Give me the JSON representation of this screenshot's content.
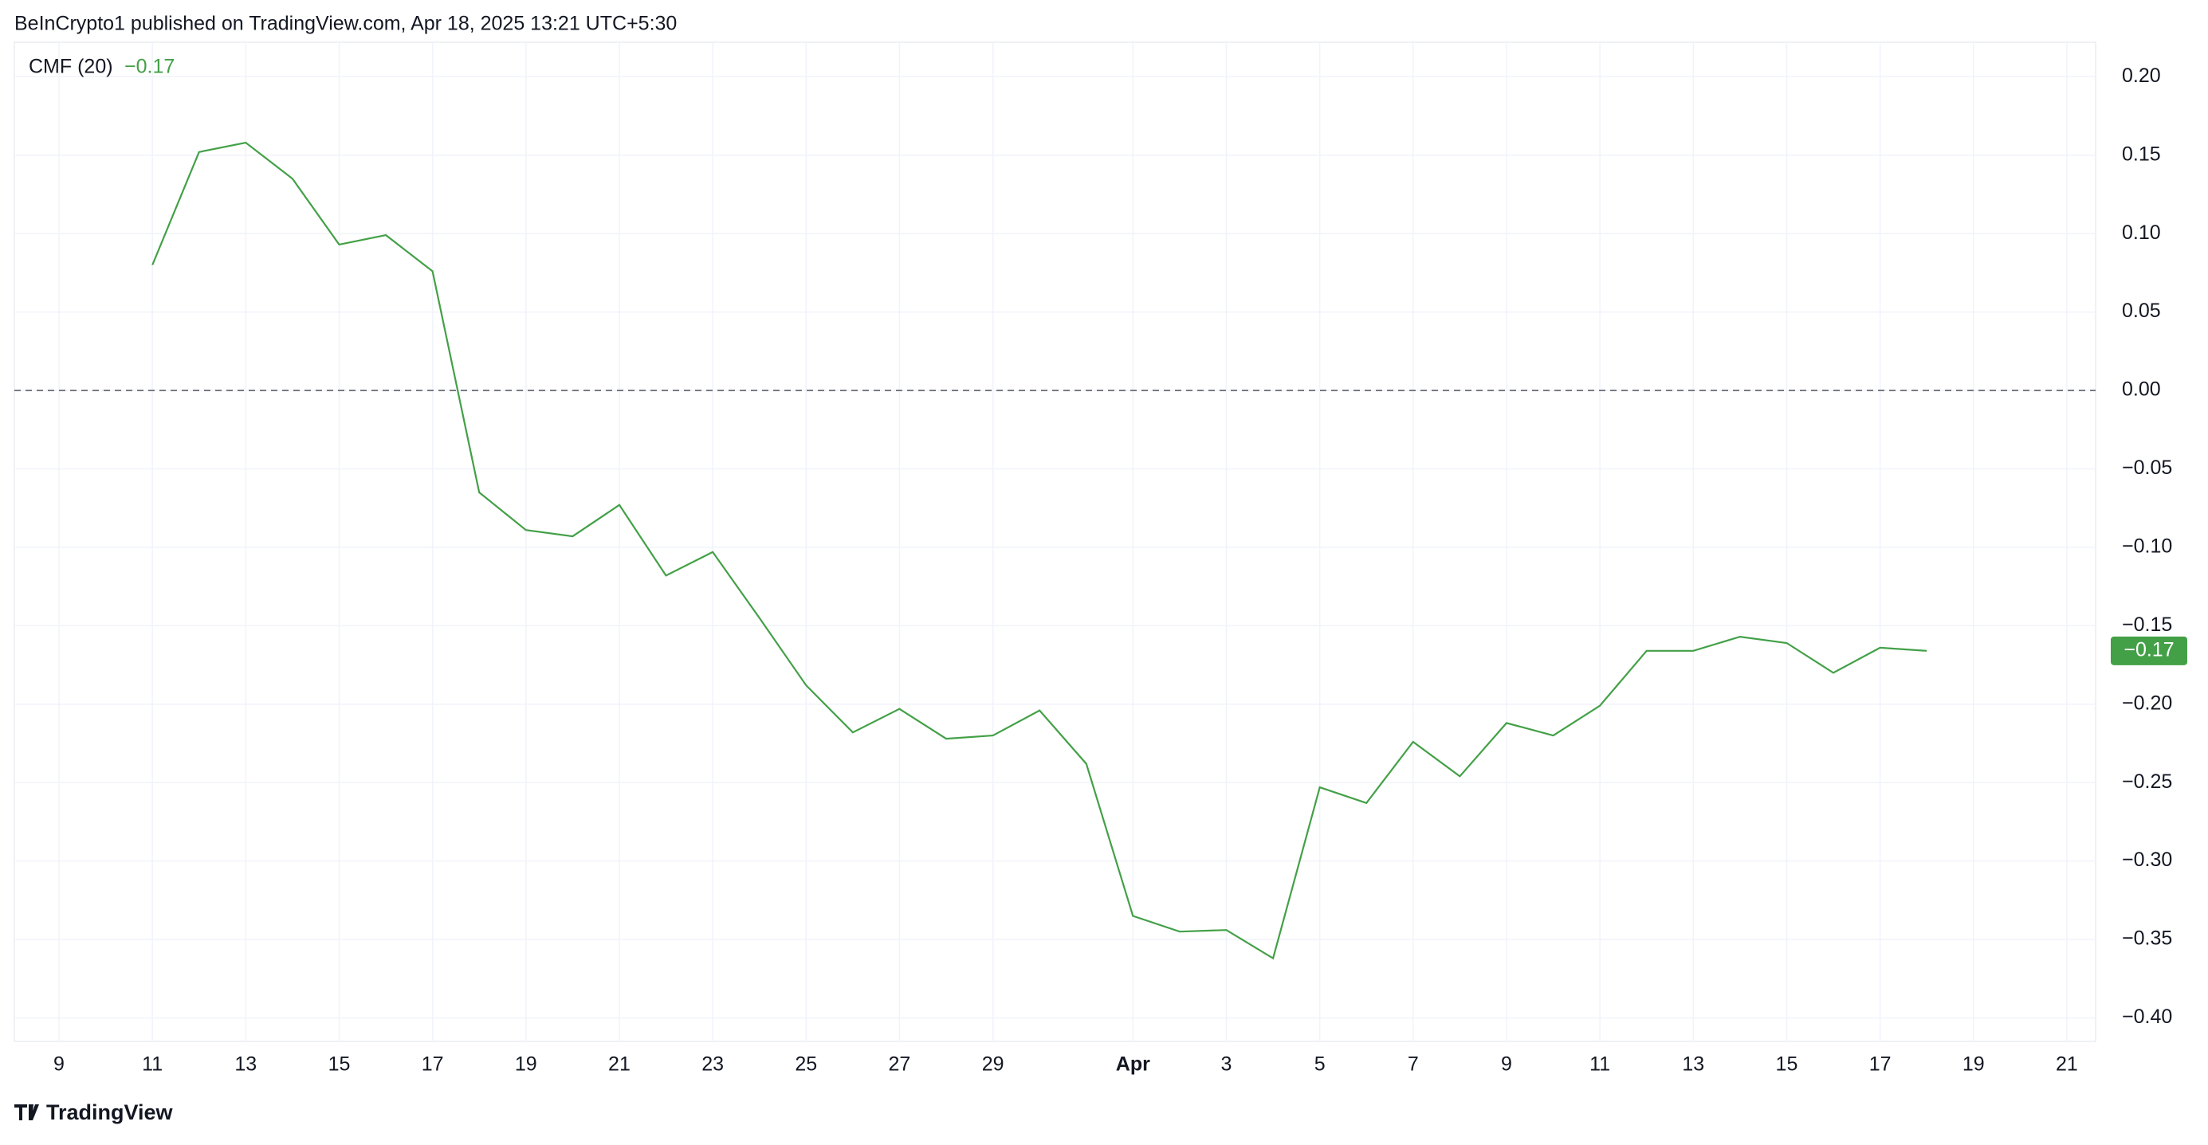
{
  "header": {
    "text": "BeInCrypto1 published on TradingView.com, Apr 18, 2025 13:21 UTC+5:30"
  },
  "footer": {
    "brand": "TradingView"
  },
  "chart_data": {
    "type": "line",
    "categories": [
      "9",
      null,
      "11",
      null,
      "13",
      null,
      "15",
      null,
      "17",
      null,
      "19",
      null,
      "21",
      null,
      "23",
      null,
      "25",
      null,
      "27",
      null,
      "29",
      null,
      null,
      "Apr",
      null,
      "3",
      null,
      "5",
      null,
      "7",
      null,
      "9",
      null,
      "11",
      null,
      "13",
      null,
      "15",
      null,
      "17",
      null,
      "19",
      null,
      "21"
    ],
    "series": [
      {
        "name": "CMF (20)",
        "color": "#43a047",
        "value_label": "−0.17",
        "values": [
          null,
          null,
          0.08,
          0.152,
          0.158,
          0.135,
          0.093,
          0.099,
          0.076,
          -0.065,
          -0.089,
          -0.093,
          -0.073,
          -0.118,
          -0.103,
          -0.145,
          -0.188,
          -0.218,
          -0.203,
          -0.222,
          -0.22,
          -0.204,
          -0.238,
          -0.335,
          -0.345,
          -0.344,
          -0.362,
          -0.253,
          -0.263,
          -0.224,
          -0.246,
          -0.212,
          -0.22,
          -0.201,
          -0.166,
          -0.166,
          -0.157,
          -0.161,
          -0.18,
          -0.164,
          -0.166,
          null,
          null,
          null
        ]
      }
    ],
    "ylim": [
      -0.415,
      0.222
    ],
    "yticks": [
      {
        "value": 0.2,
        "label": "0.20"
      },
      {
        "value": 0.15,
        "label": "0.15"
      },
      {
        "value": 0.1,
        "label": "0.10"
      },
      {
        "value": 0.05,
        "label": "0.05"
      },
      {
        "value": 0,
        "label": "0.00"
      },
      {
        "value": -0.05,
        "label": "−0.05"
      },
      {
        "value": -0.1,
        "label": "−0.10"
      },
      {
        "value": -0.15,
        "label": "−0.15"
      },
      {
        "value": -0.2,
        "label": "−0.20"
      },
      {
        "value": -0.25,
        "label": "−0.25"
      },
      {
        "value": -0.3,
        "label": "−0.30"
      },
      {
        "value": -0.35,
        "label": "−0.35"
      },
      {
        "value": -0.4,
        "label": "−0.40"
      }
    ],
    "zero_line": 0,
    "grid": true
  }
}
